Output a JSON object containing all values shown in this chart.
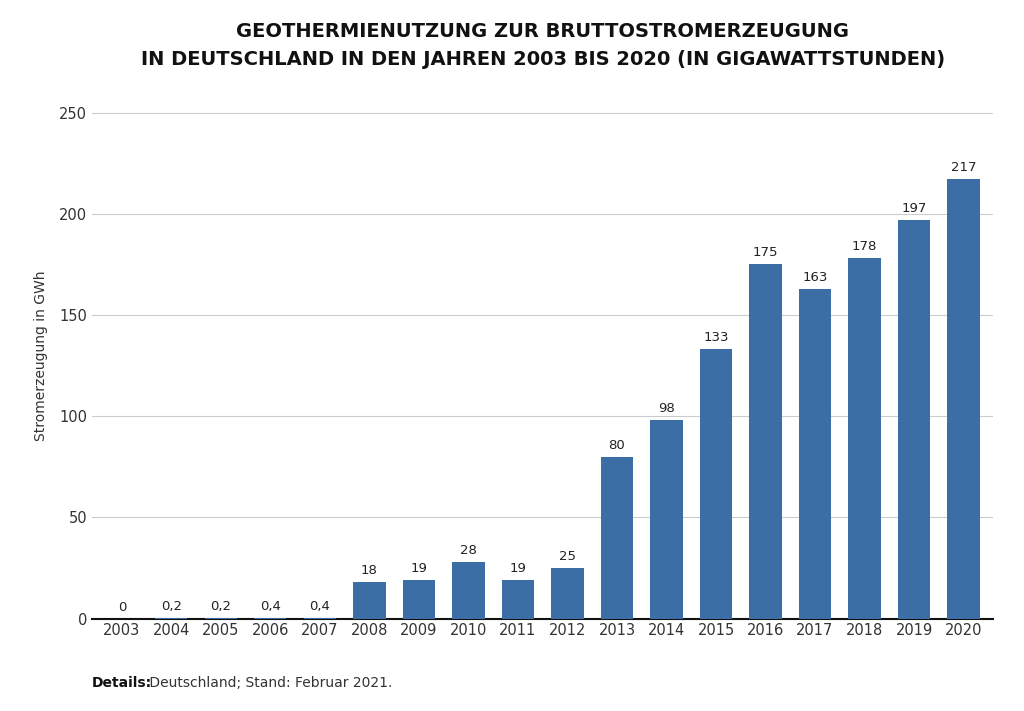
{
  "title_line1": "GEOTHERMIENUTZUNG ZUR BRUTTOSTROMERZEUGUNG",
  "title_line2": "IN DEUTSCHLAND IN DEN JAHREN 2003 BIS 2020 (IN GIGAWATTSTUNDEN)",
  "ylabel": "Stromerzeugung in GWh",
  "footer_bold": "Details:",
  "footer_normal": " Deutschland; Stand: Februar 2021.",
  "categories": [
    "2003",
    "2004",
    "2005",
    "2006",
    "2007",
    "2008",
    "2009",
    "2010",
    "2011",
    "2012",
    "2013",
    "2014",
    "2015",
    "2016",
    "2017",
    "2018",
    "2019",
    "2020"
  ],
  "values": [
    0,
    0.2,
    0.2,
    0.4,
    0.4,
    18,
    19,
    28,
    19,
    25,
    80,
    98,
    133,
    175,
    163,
    178,
    197,
    217
  ],
  "labels": [
    "0",
    "0,2",
    "0,2",
    "0,4",
    "0,4",
    "18",
    "19",
    "28",
    "19",
    "25",
    "80",
    "98",
    "133",
    "175",
    "163",
    "178",
    "197",
    "217"
  ],
  "bar_color": "#3a6ea5",
  "background_color": "#ffffff",
  "ylim": [
    0,
    260
  ],
  "yticks": [
    0,
    50,
    100,
    150,
    200,
    250
  ],
  "grid_color": "#cccccc",
  "title_fontsize": 14,
  "label_fontsize": 9.5,
  "tick_fontsize": 10.5,
  "ylabel_fontsize": 10,
  "footer_fontsize": 10
}
